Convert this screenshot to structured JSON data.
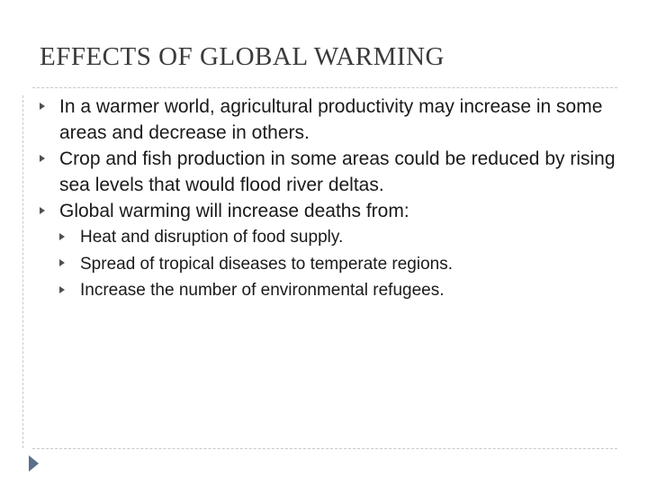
{
  "slide": {
    "title": "EFFECTS OF GLOBAL WARMING",
    "bullets": [
      {
        "level": 1,
        "text": "In a warmer world, agricultural productivity may increase in some areas and decrease in others."
      },
      {
        "level": 1,
        "text": "Crop and fish production in some areas could be reduced by rising sea levels that would flood river deltas."
      },
      {
        "level": 1,
        "text": "Global warming will increase deaths from:"
      },
      {
        "level": 2,
        "text": "Heat and disruption of food supply."
      },
      {
        "level": 2,
        "text": "Spread of tropical diseases to temperate regions."
      },
      {
        "level": 2,
        "text": "Increase the number of environmental refugees."
      }
    ]
  },
  "icons": {
    "bullet_marker": "triangle-right-icon",
    "nav": "next-slide-arrow-icon"
  },
  "colors": {
    "background": "#ffffff",
    "title_text": "#3a3a3a",
    "body_text": "#1a1a1a",
    "rule": "#c8c8c8",
    "nav_arrow": "#5a6f8c"
  }
}
